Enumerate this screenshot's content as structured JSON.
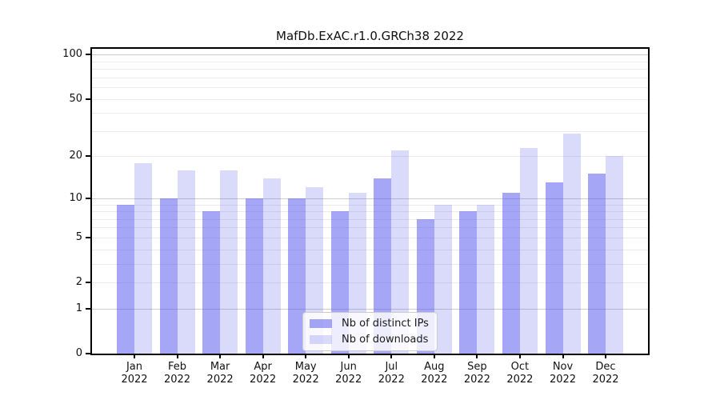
{
  "chart": {
    "title": "MafDb.ExAC.r1.0.GRCh38 2022"
  },
  "chart_data": {
    "type": "bar",
    "title": "MafDb.ExAC.r1.0.GRCh38 2022",
    "categories": [
      "Jan 2022",
      "Feb 2022",
      "Mar 2022",
      "Apr 2022",
      "May 2022",
      "Jun 2022",
      "Jul 2022",
      "Aug 2022",
      "Sep 2022",
      "Oct 2022",
      "Nov 2022",
      "Dec 2022"
    ],
    "x_tick_line1": [
      "Jan",
      "Feb",
      "Mar",
      "Apr",
      "May",
      "Jun",
      "Jul",
      "Aug",
      "Sep",
      "Oct",
      "Nov",
      "Dec"
    ],
    "x_tick_line2": "2022",
    "series": [
      {
        "name": "Nb of distinct IPs",
        "color": "rgba(85,85,238,0.52)",
        "values": [
          9,
          10,
          8,
          10,
          10,
          8,
          14,
          7,
          8,
          11,
          13,
          15
        ]
      },
      {
        "name": "Nb of downloads",
        "color": "rgba(85,85,238,0.22)",
        "values": [
          18,
          16,
          16,
          14,
          12,
          11,
          22,
          9,
          9,
          23,
          29,
          20
        ]
      }
    ],
    "yscale": "log1p",
    "ylim": [
      0,
      115
    ],
    "y_tick_labels": [
      "100",
      "50",
      "20",
      "10",
      "5",
      "2",
      "1",
      "0"
    ],
    "y_tick_values": [
      100,
      50,
      20,
      10,
      5,
      2,
      1,
      0
    ],
    "grid_major_values": [
      1,
      10,
      100
    ],
    "grid_minor_values": [
      2,
      3,
      4,
      5,
      6,
      7,
      8,
      9,
      20,
      30,
      40,
      50,
      60,
      70,
      80,
      90
    ],
    "grid": true,
    "xlabel": "",
    "ylabel": "",
    "legend_position": "inside bottom-center"
  },
  "colors": {
    "bar_ips": "rgba(85,85,238,0.52)",
    "bar_downloads": "rgba(85,85,238,0.22)",
    "grid_major": "#cccccc",
    "grid_minor": "#ebebeb",
    "spine": "#000000",
    "text": "#111111"
  }
}
